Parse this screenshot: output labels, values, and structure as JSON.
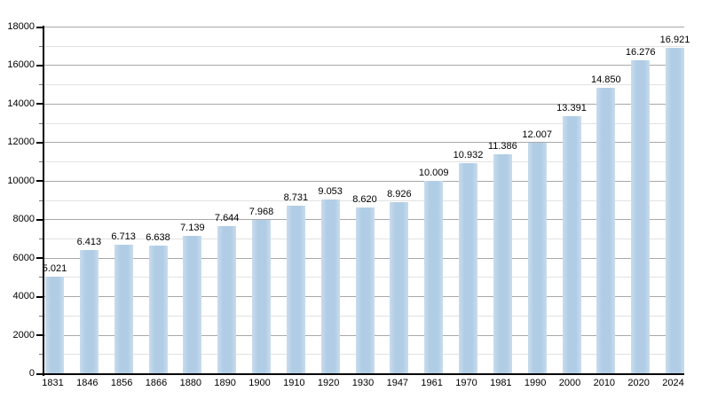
{
  "chart_data": {
    "type": "bar",
    "title": "",
    "xlabel": "",
    "ylabel": "",
    "legend": "none",
    "grid": "horizontal, major every 2000 and minor every 1000, drawn behind bars",
    "categories": [
      "1831",
      "1846",
      "1856",
      "1866",
      "1880",
      "1890",
      "1900",
      "1910",
      "1920",
      "1930",
      "1947",
      "1961",
      "1970",
      "1981",
      "1990",
      "2000",
      "2010",
      "2020",
      "2024"
    ],
    "values": [
      5021,
      6413,
      6713,
      6638,
      7139,
      7644,
      7968,
      8731,
      9053,
      8620,
      8926,
      10009,
      10932,
      11386,
      12007,
      13391,
      14850,
      16276,
      16921
    ],
    "value_labels": [
      "5.021",
      "6.413",
      "6.713",
      "6.638",
      "7.139",
      "7.644",
      "7.968",
      "8.731",
      "9.053",
      "8.620",
      "8.926",
      "10.009",
      "10.932",
      "11.386",
      "12.007",
      "13.391",
      "14.850",
      "16.276",
      "16.921"
    ],
    "ylim": [
      0,
      18000
    ],
    "ytick_interval": 2000,
    "minor_tick_interval": 1000,
    "ytick_labels": [
      "0",
      "2000",
      "4000",
      "6000",
      "8000",
      "10000",
      "12000",
      "14000",
      "16000",
      "18000"
    ],
    "colors": {
      "bar": "#b1cde5",
      "bar_edge": "#c9dcee",
      "major_grid": "#a8a8a8",
      "minor_grid": "#e2e2e2",
      "axis": "#000000",
      "text": "#000000",
      "background": "#ffffff"
    }
  }
}
